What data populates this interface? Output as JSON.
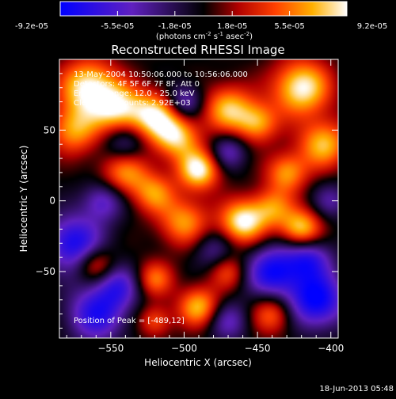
{
  "chart_data": {
    "type": "heatmap",
    "title": "Reconstructed RHESSI Image",
    "xlabel": "Heliocentric X (arcsec)",
    "ylabel": "Heliocentric Y (arcsec)",
    "xlim": [
      -585,
      -395
    ],
    "ylim": [
      -97,
      100
    ],
    "x_ticks": [
      -550,
      -500,
      -450,
      -400
    ],
    "y_ticks": [
      50,
      0,
      -50
    ],
    "colorbar": {
      "ticks": [
        "-9.2e-05",
        "-5.5e-05",
        "-1.8e-05",
        "1.8e-05",
        "5.5e-05",
        "9.2e-05"
      ],
      "range": [
        -9.2e-05,
        9.2e-05
      ],
      "units_line1": "(photons cm",
      "units_sup1": "-2",
      "units_line2": " s",
      "units_sup2": "-1",
      "units_line3": " asec",
      "units_sup3": "-2",
      "units_close": ")"
    },
    "annotations": [
      "13-May-2004 10:50:06.000 to 10:56:06.000",
      "Detectors: 4F 5F 6F 7F 8F, Att 0",
      "Energy Range: 12.0 - 25.0 keV",
      "Clean      Total counts: 2.92E+03"
    ],
    "peak_label": "Position of Peak = [-489,12]",
    "peak": [
      -489,
      12
    ],
    "blobs": [
      {
        "x": -565,
        "y": 80,
        "a": 1.0,
        "s": 14
      },
      {
        "x": -545,
        "y": 65,
        "a": 0.8,
        "s": 12
      },
      {
        "x": -575,
        "y": 50,
        "a": 0.7,
        "s": 12
      },
      {
        "x": -520,
        "y": 60,
        "a": 0.9,
        "s": 12
      },
      {
        "x": -505,
        "y": 45,
        "a": 0.8,
        "s": 11
      },
      {
        "x": -490,
        "y": 22,
        "a": 1.0,
        "s": 10
      },
      {
        "x": -470,
        "y": 65,
        "a": 0.8,
        "s": 12
      },
      {
        "x": -450,
        "y": 55,
        "a": 0.7,
        "s": 10
      },
      {
        "x": -420,
        "y": 80,
        "a": 1.0,
        "s": 14
      },
      {
        "x": -405,
        "y": 40,
        "a": 0.8,
        "s": 12
      },
      {
        "x": -430,
        "y": 20,
        "a": 0.7,
        "s": 10
      },
      {
        "x": -540,
        "y": 20,
        "a": 0.7,
        "s": 12
      },
      {
        "x": -520,
        "y": 5,
        "a": 0.6,
        "s": 10
      },
      {
        "x": -500,
        "y": -15,
        "a": 0.7,
        "s": 12
      },
      {
        "x": -460,
        "y": -15,
        "a": 1.0,
        "s": 11
      },
      {
        "x": -440,
        "y": -5,
        "a": 0.6,
        "s": 10
      },
      {
        "x": -420,
        "y": -20,
        "a": 0.9,
        "s": 10
      },
      {
        "x": -560,
        "y": -45,
        "a": 0.6,
        "s": 9
      },
      {
        "x": -520,
        "y": -55,
        "a": 0.6,
        "s": 9
      },
      {
        "x": -490,
        "y": -75,
        "a": 0.8,
        "s": 10
      },
      {
        "x": -470,
        "y": -50,
        "a": 0.5,
        "s": 9
      },
      {
        "x": -440,
        "y": -80,
        "a": 0.6,
        "s": 10
      },
      {
        "x": -520,
        "y": -85,
        "a": 0.5,
        "s": 8
      },
      {
        "x": -575,
        "y": -30,
        "a": -0.9,
        "s": 14
      },
      {
        "x": -560,
        "y": -80,
        "a": -0.8,
        "s": 14
      },
      {
        "x": -545,
        "y": -60,
        "a": -0.6,
        "s": 11
      },
      {
        "x": -440,
        "y": -50,
        "a": -0.9,
        "s": 13
      },
      {
        "x": -410,
        "y": -70,
        "a": -1.0,
        "s": 14
      },
      {
        "x": -415,
        "y": -40,
        "a": -0.7,
        "s": 11
      },
      {
        "x": -470,
        "y": -85,
        "a": -0.5,
        "s": 10
      },
      {
        "x": -540,
        "y": 40,
        "a": -0.5,
        "s": 10
      },
      {
        "x": -500,
        "y": 70,
        "a": -0.6,
        "s": 9
      },
      {
        "x": -470,
        "y": 35,
        "a": -0.5,
        "s": 9
      },
      {
        "x": -555,
        "y": 0,
        "a": -0.6,
        "s": 10
      },
      {
        "x": -480,
        "y": -35,
        "a": -0.4,
        "s": 10
      },
      {
        "x": -400,
        "y": 0,
        "a": -0.4,
        "s": 9
      }
    ]
  },
  "footer": {
    "date": "18-Jun-2013 05:48"
  }
}
